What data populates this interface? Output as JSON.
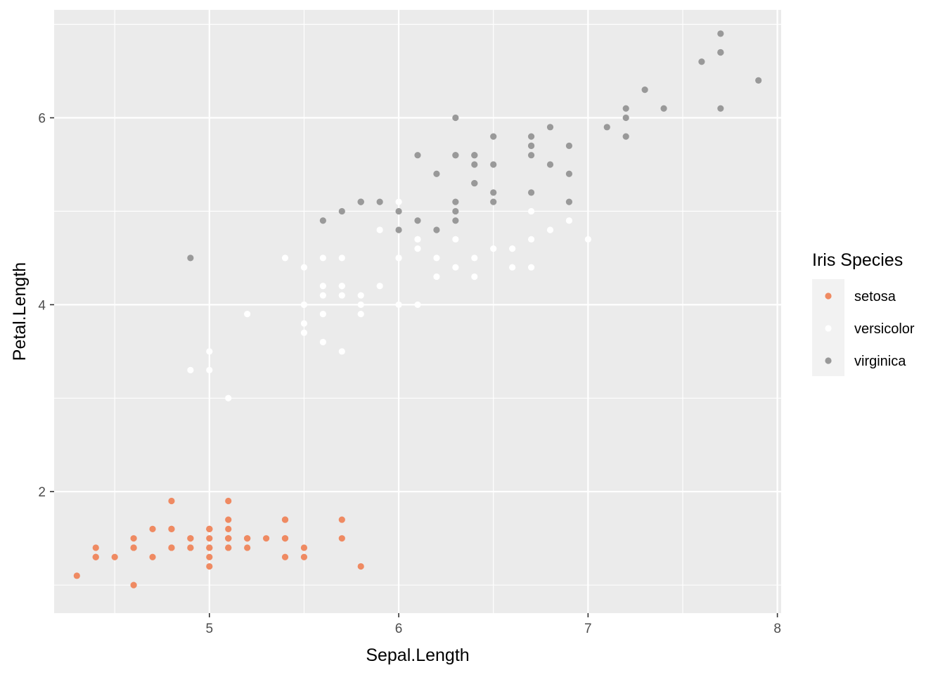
{
  "chart_data": {
    "type": "scatter",
    "title": "",
    "xlabel": "Sepal.Length",
    "ylabel": "Petal.Length",
    "xlim": [
      4.18,
      8.02
    ],
    "ylim": [
      0.7,
      7.155
    ],
    "x_ticks": [
      5,
      6,
      7,
      8
    ],
    "y_ticks": [
      2,
      4,
      6
    ],
    "grid": true,
    "legend": {
      "title": "Iris Species",
      "placement": "right",
      "entries": [
        "setosa",
        "versicolor",
        "virginica"
      ]
    },
    "colors": {
      "setosa": "#ef8a62",
      "versicolor": "#ffffff",
      "virginica": "#999999",
      "panel": "#ebebeb",
      "grid": "#ffffff"
    },
    "series": [
      {
        "name": "setosa",
        "x": [
          5.1,
          4.9,
          4.7,
          4.6,
          5.0,
          5.4,
          4.6,
          5.0,
          4.4,
          4.9,
          5.4,
          4.8,
          4.8,
          4.3,
          5.8,
          5.7,
          5.4,
          5.1,
          5.7,
          5.1,
          5.4,
          5.1,
          4.6,
          5.1,
          4.8,
          5.0,
          5.0,
          5.2,
          5.2,
          4.7,
          4.8,
          5.4,
          5.2,
          5.5,
          4.9,
          5.0,
          5.5,
          4.9,
          4.4,
          5.1,
          5.0,
          4.5,
          4.4,
          5.0,
          5.1,
          4.8,
          5.1,
          4.6,
          5.3,
          5.0
        ],
        "y": [
          1.4,
          1.4,
          1.3,
          1.5,
          1.4,
          1.7,
          1.4,
          1.5,
          1.4,
          1.5,
          1.5,
          1.6,
          1.4,
          1.1,
          1.2,
          1.5,
          1.3,
          1.4,
          1.7,
          1.5,
          1.7,
          1.5,
          1.0,
          1.7,
          1.9,
          1.6,
          1.6,
          1.5,
          1.4,
          1.6,
          1.6,
          1.5,
          1.5,
          1.4,
          1.5,
          1.2,
          1.3,
          1.4,
          1.3,
          1.5,
          1.3,
          1.3,
          1.3,
          1.6,
          1.9,
          1.4,
          1.6,
          1.4,
          1.5,
          1.4
        ]
      },
      {
        "name": "versicolor",
        "x": [
          7.0,
          6.4,
          6.9,
          5.5,
          6.5,
          5.7,
          6.3,
          4.9,
          6.6,
          5.2,
          5.0,
          5.9,
          6.0,
          6.1,
          5.6,
          6.7,
          5.6,
          5.8,
          6.2,
          5.6,
          5.9,
          6.1,
          6.3,
          6.1,
          6.4,
          6.6,
          6.8,
          6.7,
          6.0,
          5.7,
          5.5,
          5.5,
          5.8,
          6.0,
          5.4,
          6.0,
          6.7,
          6.3,
          5.6,
          5.5,
          5.5,
          6.1,
          5.8,
          5.0,
          5.6,
          5.7,
          5.7,
          6.2,
          5.1,
          5.7
        ],
        "y": [
          4.7,
          4.5,
          4.9,
          4.0,
          4.6,
          4.5,
          4.7,
          3.3,
          4.6,
          3.9,
          3.5,
          4.2,
          4.0,
          4.7,
          3.6,
          4.4,
          4.5,
          4.1,
          4.5,
          3.9,
          4.8,
          4.0,
          4.9,
          4.7,
          4.3,
          4.4,
          4.8,
          5.0,
          4.5,
          3.5,
          3.8,
          3.7,
          3.9,
          5.1,
          4.5,
          4.5,
          4.7,
          4.4,
          4.1,
          4.0,
          4.4,
          4.6,
          4.0,
          3.3,
          4.2,
          4.2,
          4.2,
          4.3,
          3.0,
          4.1
        ]
      },
      {
        "name": "virginica",
        "x": [
          6.3,
          5.8,
          7.1,
          6.3,
          6.5,
          7.6,
          4.9,
          7.3,
          6.7,
          7.2,
          6.5,
          6.4,
          6.8,
          5.7,
          5.8,
          6.4,
          6.5,
          7.7,
          7.7,
          6.0,
          6.9,
          5.6,
          7.7,
          6.3,
          6.7,
          7.2,
          6.2,
          6.1,
          6.4,
          7.2,
          7.4,
          7.9,
          6.4,
          6.3,
          6.1,
          7.7,
          6.3,
          6.4,
          6.0,
          6.9,
          6.7,
          6.9,
          5.8,
          6.8,
          6.7,
          6.7,
          6.3,
          6.5,
          6.2,
          5.9
        ],
        "y": [
          6.0,
          5.1,
          5.9,
          5.6,
          5.8,
          6.6,
          4.5,
          6.3,
          5.8,
          6.1,
          5.1,
          5.3,
          5.5,
          5.0,
          5.1,
          5.3,
          5.5,
          6.7,
          6.9,
          5.0,
          5.7,
          4.9,
          6.7,
          4.9,
          5.7,
          6.0,
          4.8,
          4.9,
          5.6,
          5.8,
          6.1,
          6.4,
          5.6,
          5.1,
          5.6,
          6.1,
          5.6,
          5.5,
          4.8,
          5.4,
          5.6,
          5.1,
          5.1,
          5.9,
          5.7,
          5.2,
          5.0,
          5.2,
          5.4,
          5.1
        ]
      }
    ]
  }
}
